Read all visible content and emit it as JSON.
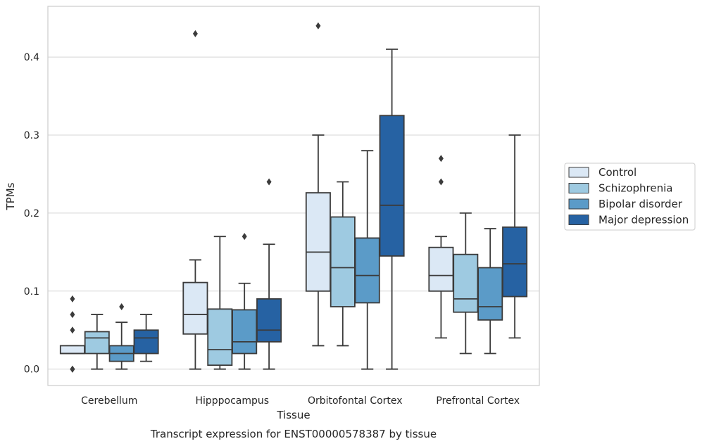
{
  "chart_data": {
    "type": "box",
    "xlabel": "Tissue",
    "ylabel": "TPMs",
    "caption": "Transcript expression for ENST00000578387 by tissue",
    "ylim": [
      -0.021,
      0.465
    ],
    "yticks": [
      0.0,
      0.1,
      0.2,
      0.3,
      0.4
    ],
    "ytick_labels": [
      "0.0",
      "0.1",
      "0.2",
      "0.3",
      "0.4"
    ],
    "grid": "horizontal",
    "legend_position": "right",
    "categories": [
      "Cerebellum",
      "Hipppocampus",
      "Orbitofontal Cortex",
      "Prefrontal Cortex"
    ],
    "series": [
      {
        "name": "Control",
        "color": "#dbe8f5",
        "boxes": [
          {
            "whislo": 0.02,
            "q1": 0.02,
            "med": 0.02,
            "q3": 0.03,
            "whishi": 0.03,
            "fliers": [
              0.0,
              0.0,
              0.05,
              0.07,
              0.09
            ]
          },
          {
            "whislo": 0.0,
            "q1": 0.045,
            "med": 0.07,
            "q3": 0.111,
            "whishi": 0.14,
            "fliers": [
              0.43
            ]
          },
          {
            "whislo": 0.03,
            "q1": 0.1,
            "med": 0.15,
            "q3": 0.226,
            "whishi": 0.3,
            "fliers": [
              0.44
            ]
          },
          {
            "whislo": 0.04,
            "q1": 0.1,
            "med": 0.12,
            "q3": 0.156,
            "whishi": 0.17,
            "fliers": [
              0.24,
              0.27
            ]
          }
        ]
      },
      {
        "name": "Schizophrenia",
        "color": "#9ecae1",
        "boxes": [
          {
            "whislo": 0.0,
            "q1": 0.02,
            "med": 0.04,
            "q3": 0.048,
            "whishi": 0.07,
            "fliers": []
          },
          {
            "whislo": 0.0,
            "q1": 0.005,
            "med": 0.025,
            "q3": 0.077,
            "whishi": 0.17,
            "fliers": []
          },
          {
            "whislo": 0.03,
            "q1": 0.08,
            "med": 0.13,
            "q3": 0.195,
            "whishi": 0.24,
            "fliers": []
          },
          {
            "whislo": 0.02,
            "q1": 0.073,
            "med": 0.09,
            "q3": 0.147,
            "whishi": 0.2,
            "fliers": []
          }
        ]
      },
      {
        "name": "Bipolar disorder",
        "color": "#5b9bc8",
        "boxes": [
          {
            "whislo": 0.0,
            "q1": 0.01,
            "med": 0.02,
            "q3": 0.03,
            "whishi": 0.06,
            "fliers": [
              0.08
            ]
          },
          {
            "whislo": 0.0,
            "q1": 0.02,
            "med": 0.035,
            "q3": 0.076,
            "whishi": 0.11,
            "fliers": [
              0.17
            ]
          },
          {
            "whislo": 0.0,
            "q1": 0.085,
            "med": 0.12,
            "q3": 0.168,
            "whishi": 0.28,
            "fliers": []
          },
          {
            "whislo": 0.02,
            "q1": 0.063,
            "med": 0.08,
            "q3": 0.13,
            "whishi": 0.18,
            "fliers": []
          }
        ]
      },
      {
        "name": "Major depression",
        "color": "#2662a3",
        "boxes": [
          {
            "whislo": 0.01,
            "q1": 0.02,
            "med": 0.04,
            "q3": 0.05,
            "whishi": 0.07,
            "fliers": []
          },
          {
            "whislo": 0.0,
            "q1": 0.035,
            "med": 0.05,
            "q3": 0.09,
            "whishi": 0.16,
            "fliers": [
              0.24
            ]
          },
          {
            "whislo": 0.0,
            "q1": 0.145,
            "med": 0.21,
            "q3": 0.325,
            "whishi": 0.41,
            "fliers": []
          },
          {
            "whislo": 0.04,
            "q1": 0.093,
            "med": 0.135,
            "q3": 0.182,
            "whishi": 0.3,
            "fliers": []
          }
        ]
      }
    ]
  }
}
